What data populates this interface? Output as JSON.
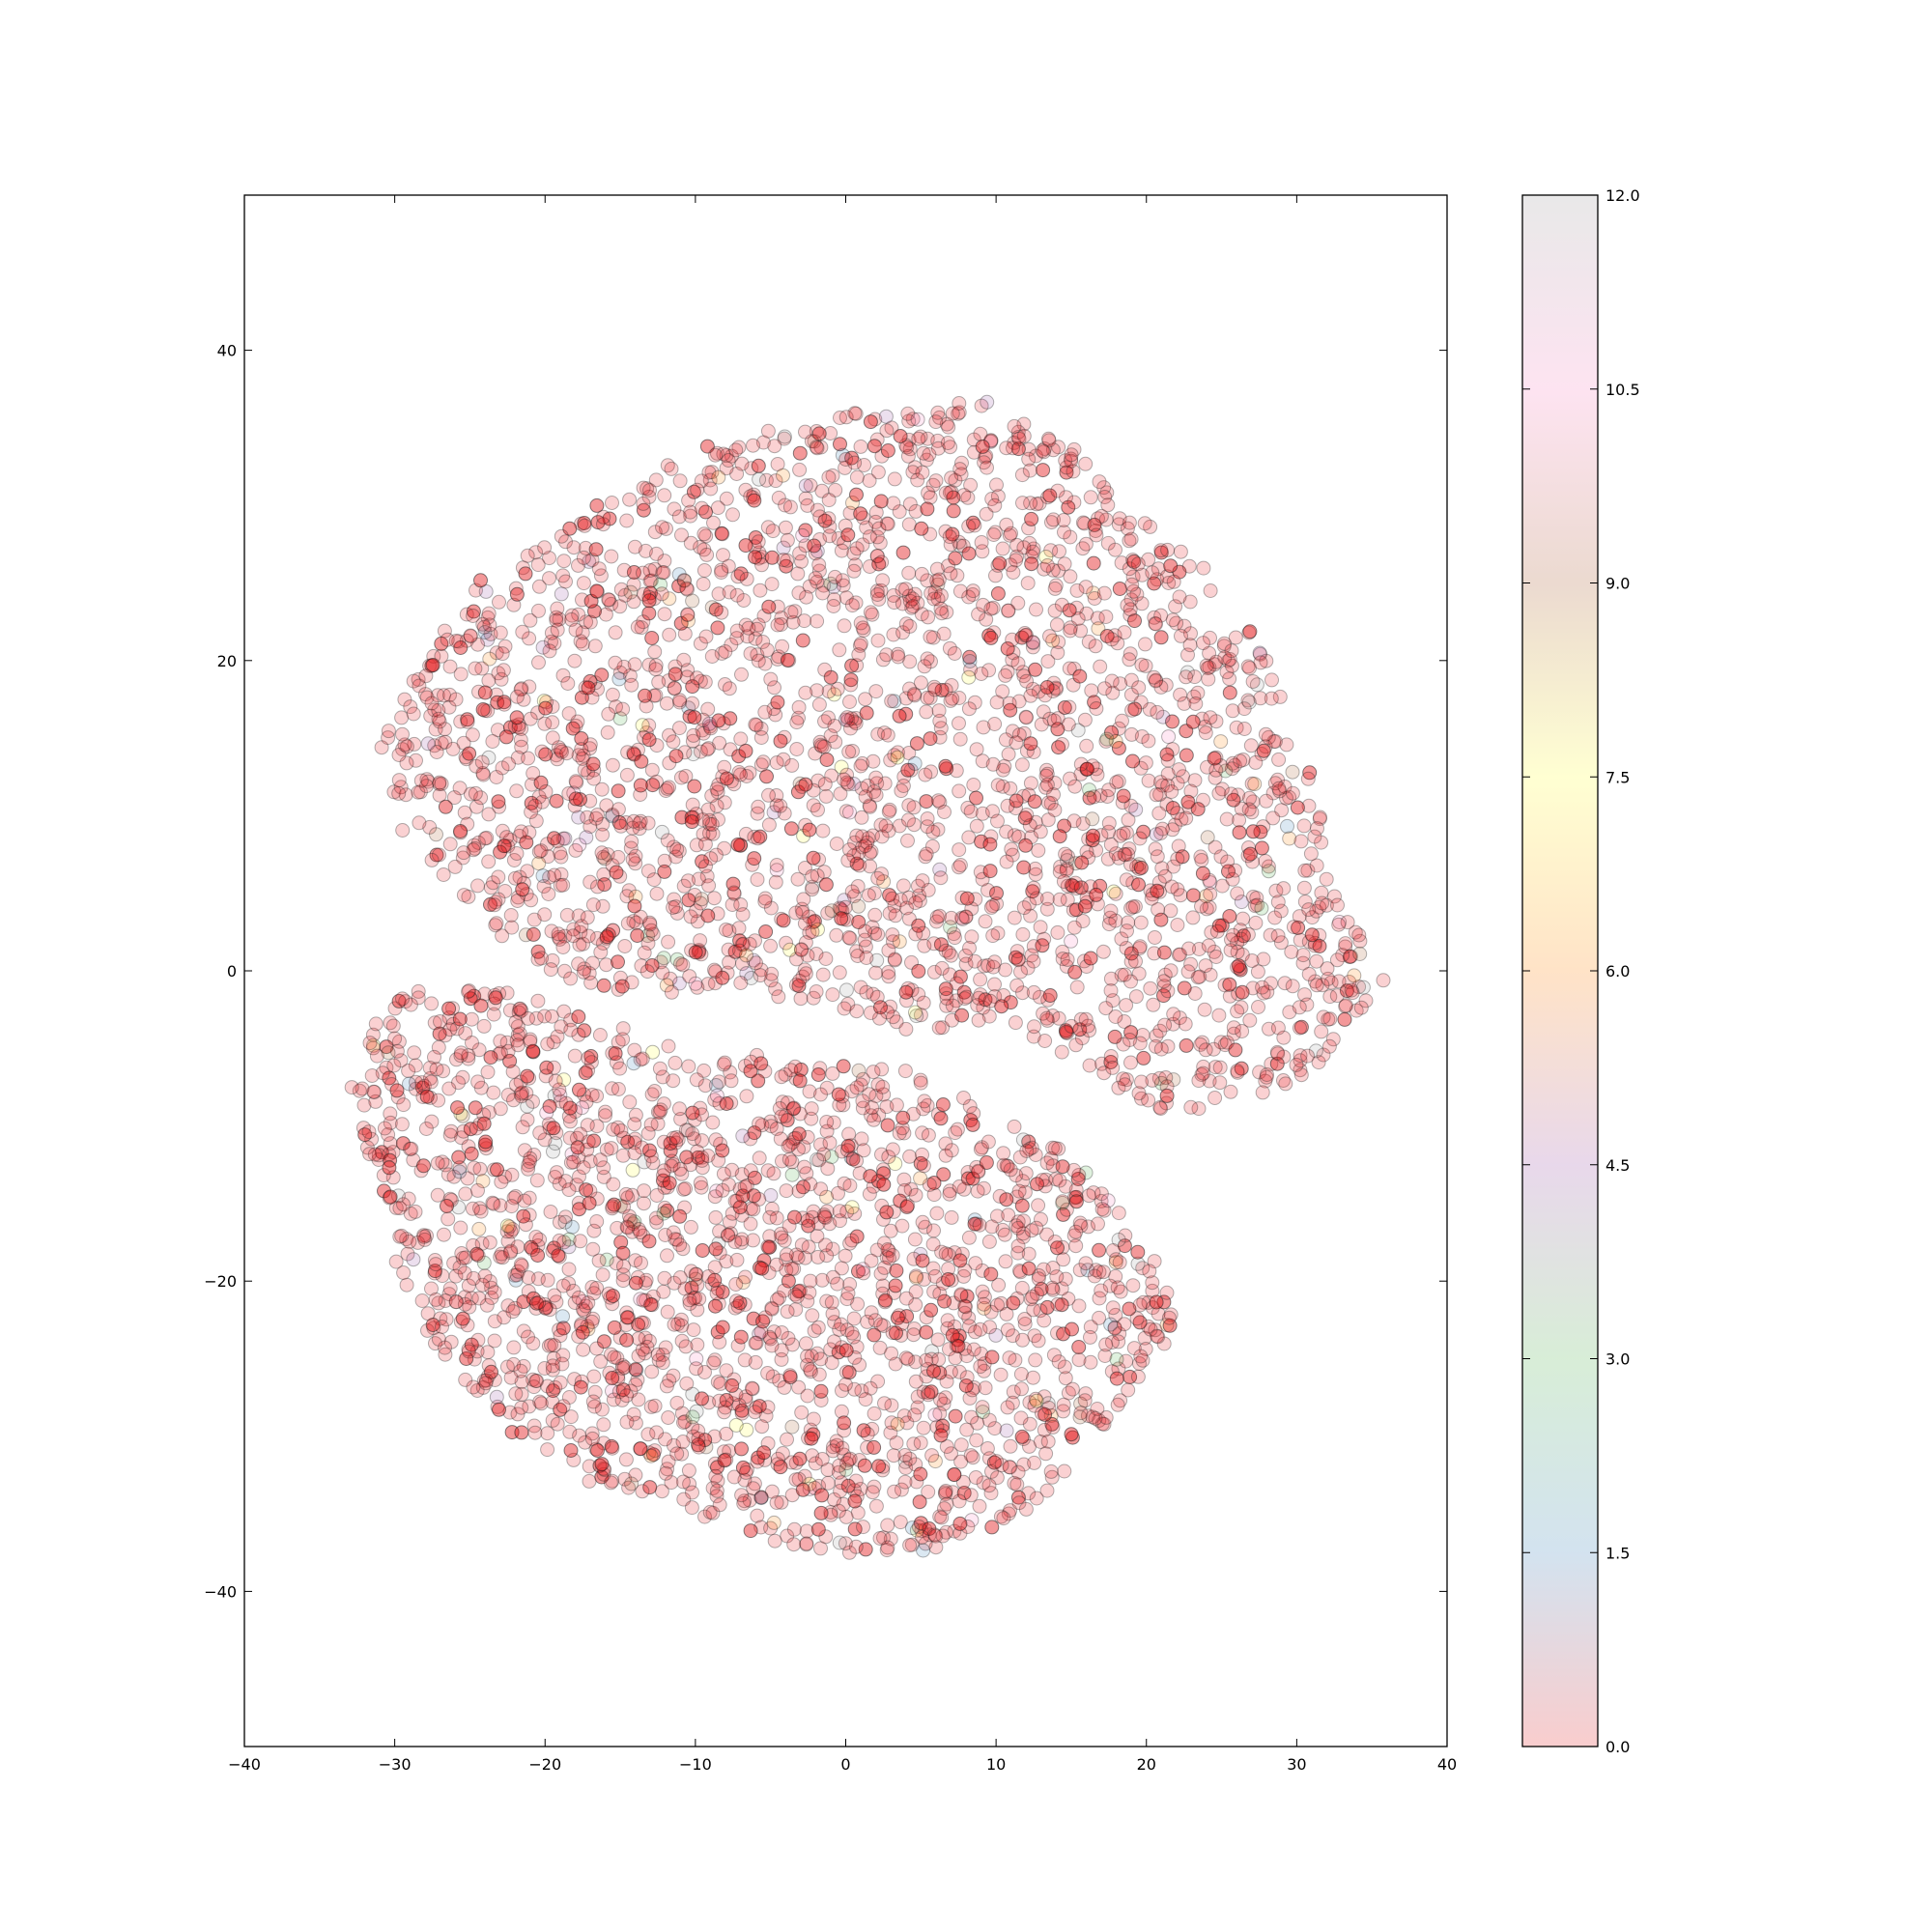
{
  "chart_data": {
    "type": "scatter",
    "title": "",
    "xlabel": "",
    "ylabel": "",
    "xlim": [
      -40,
      40
    ],
    "ylim": [
      -50,
      50
    ],
    "x_ticks": [
      -40,
      -30,
      -20,
      -10,
      0,
      10,
      20,
      30,
      40
    ],
    "y_ticks": [
      -40,
      -20,
      0,
      20,
      40
    ],
    "x_tick_labels": [
      "−40",
      "−30",
      "−20",
      "−10",
      "0",
      "10",
      "20",
      "30",
      "40"
    ],
    "y_tick_labels": [
      "−40",
      "−20",
      "0",
      "20",
      "40"
    ],
    "grid": false,
    "colormap": "Set1",
    "point_alpha": 0.2,
    "dominant_point_color": "#e41a1c",
    "colorbar": {
      "range": [
        0.0,
        12.0
      ],
      "ticks": [
        0.0,
        1.5,
        3.0,
        4.5,
        6.0,
        7.5,
        9.0,
        10.5,
        12.0
      ],
      "tick_labels": [
        "0.0",
        "1.5",
        "3.0",
        "4.5",
        "6.0",
        "7.5",
        "9.0",
        "10.5",
        "12.0"
      ],
      "colors": [
        "#e41a1c",
        "#377eb8",
        "#4daf4a",
        "#984ea3",
        "#ff7f00",
        "#ffff33",
        "#a65628",
        "#f781bf",
        "#999999"
      ]
    },
    "clusters": [
      {
        "region": "upper",
        "center": [
          4,
          18
        ],
        "approx_extent_x": [
          -33,
          36
        ],
        "approx_extent_y": [
          -10,
          37
        ],
        "outline": [
          [
            -30,
            9
          ],
          [
            -31,
            15
          ],
          [
            -28,
            20
          ],
          [
            -25,
            25
          ],
          [
            -20,
            28
          ],
          [
            -15,
            31
          ],
          [
            -10,
            34
          ],
          [
            -5,
            35
          ],
          [
            0,
            36
          ],
          [
            5,
            36
          ],
          [
            9,
            37
          ],
          [
            15,
            34
          ],
          [
            20,
            29
          ],
          [
            25,
            25
          ],
          [
            29,
            19
          ],
          [
            31,
            14
          ],
          [
            32,
            9
          ],
          [
            33,
            5
          ],
          [
            36,
            -1
          ],
          [
            34,
            -4
          ],
          [
            30,
            -7
          ],
          [
            25,
            -9
          ],
          [
            21,
            -9
          ],
          [
            17,
            -7
          ],
          [
            14,
            -5
          ],
          [
            10,
            -3
          ],
          [
            5,
            -4
          ],
          [
            0,
            -4
          ],
          [
            -3,
            -2
          ],
          [
            -8,
            -1
          ],
          [
            -12,
            -2
          ],
          [
            -18,
            -1
          ],
          [
            -23,
            2
          ],
          [
            -27,
            6
          ]
        ],
        "n_points": 2600
      },
      {
        "region": "lower",
        "center": [
          -8,
          -19
        ],
        "approx_extent_x": [
          -33,
          23
        ],
        "approx_extent_y": [
          -38,
          -1
        ],
        "outline": [
          [
            -29,
            -1
          ],
          [
            -32,
            -4
          ],
          [
            -33,
            -8
          ],
          [
            -31,
            -14
          ],
          [
            -30,
            -19
          ],
          [
            -27,
            -25
          ],
          [
            -22,
            -30
          ],
          [
            -17,
            -33
          ],
          [
            -10,
            -35
          ],
          [
            -4,
            -37
          ],
          [
            2,
            -38
          ],
          [
            7,
            -37
          ],
          [
            12,
            -35
          ],
          [
            16,
            -31
          ],
          [
            19,
            -27
          ],
          [
            22,
            -23
          ],
          [
            21,
            -19
          ],
          [
            18,
            -15
          ],
          [
            15,
            -12
          ],
          [
            11,
            -9
          ],
          [
            7,
            -7
          ],
          [
            2,
            -6
          ],
          [
            -3,
            -6
          ],
          [
            -8,
            -5
          ],
          [
            -13,
            -4
          ],
          [
            -18,
            -2
          ],
          [
            -23,
            -1
          ]
        ],
        "n_points": 2000
      }
    ]
  }
}
